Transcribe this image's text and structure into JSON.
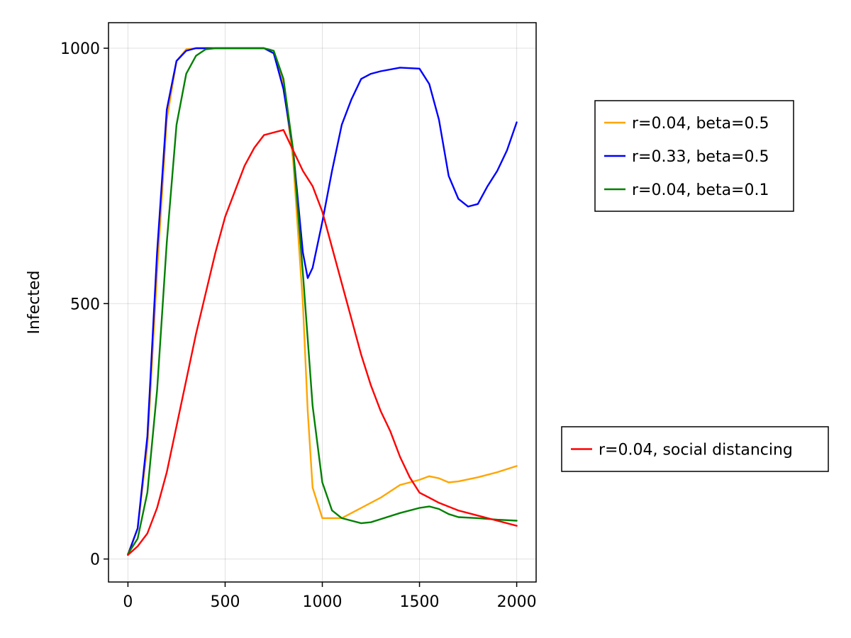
{
  "chart_data": {
    "type": "line",
    "title": "",
    "xlabel": "",
    "ylabel": "Infected",
    "xlim": [
      -100,
      2100
    ],
    "ylim": [
      -45,
      1050
    ],
    "xticks": [
      0,
      500,
      1000,
      1500,
      2000
    ],
    "yticks": [
      0,
      500,
      1000
    ],
    "xtick_labels": [
      "0",
      "500",
      "1000",
      "1500",
      "2000"
    ],
    "ytick_labels": [
      "0",
      "500",
      "1000"
    ],
    "grid": true,
    "legends": [
      {
        "placement": "right-top",
        "entries": [
          0,
          1,
          2
        ]
      },
      {
        "placement": "right-bottom",
        "entries": [
          3
        ]
      }
    ],
    "series": [
      {
        "name": "r=0.04, beta=0.5",
        "color": "#FFA500",
        "x": [
          0,
          50,
          100,
          150,
          200,
          250,
          300,
          350,
          400,
          500,
          600,
          700,
          750,
          800,
          850,
          900,
          925,
          950,
          1000,
          1100,
          1150,
          1200,
          1300,
          1400,
          1500,
          1550,
          1600,
          1650,
          1700,
          1800,
          1900,
          2000
        ],
        "y": [
          10,
          60,
          220,
          560,
          860,
          975,
          998,
          1000,
          1000,
          1000,
          1000,
          1000,
          990,
          930,
          780,
          500,
          290,
          140,
          80,
          80,
          90,
          100,
          120,
          145,
          155,
          162,
          158,
          150,
          152,
          160,
          170,
          182
        ]
      },
      {
        "name": "r=0.33, beta=0.5",
        "color": "#0000FF",
        "x": [
          0,
          50,
          100,
          150,
          200,
          250,
          300,
          350,
          400,
          500,
          600,
          700,
          750,
          800,
          850,
          900,
          925,
          950,
          1000,
          1050,
          1100,
          1150,
          1200,
          1250,
          1300,
          1400,
          1500,
          1550,
          1600,
          1650,
          1700,
          1750,
          1800,
          1850,
          1900,
          1950,
          2000
        ],
        "y": [
          8,
          60,
          240,
          600,
          880,
          975,
          995,
          1000,
          1000,
          1000,
          1000,
          1000,
          990,
          920,
          800,
          600,
          550,
          570,
          660,
          760,
          850,
          900,
          940,
          950,
          955,
          962,
          960,
          930,
          860,
          750,
          705,
          690,
          695,
          730,
          760,
          800,
          855
        ]
      },
      {
        "name": "r=0.04, beta=0.1",
        "color": "#008000",
        "x": [
          0,
          50,
          100,
          150,
          200,
          250,
          300,
          350,
          400,
          450,
          500,
          600,
          700,
          750,
          800,
          850,
          900,
          950,
          1000,
          1050,
          1100,
          1150,
          1200,
          1250,
          1300,
          1400,
          1500,
          1550,
          1600,
          1650,
          1700,
          1800,
          1900,
          2000
        ],
        "y": [
          10,
          40,
          130,
          330,
          620,
          850,
          950,
          985,
          998,
          1000,
          1000,
          1000,
          1000,
          995,
          940,
          800,
          560,
          300,
          150,
          95,
          80,
          75,
          70,
          72,
          78,
          90,
          100,
          103,
          98,
          88,
          82,
          80,
          77,
          75
        ]
      },
      {
        "name": "r=0.04, social distancing",
        "color": "#FF0000",
        "x": [
          0,
          50,
          100,
          150,
          200,
          250,
          300,
          350,
          400,
          450,
          500,
          550,
          600,
          650,
          700,
          750,
          800,
          850,
          900,
          950,
          1000,
          1050,
          1100,
          1150,
          1200,
          1250,
          1300,
          1350,
          1400,
          1450,
          1500,
          1550,
          1600,
          1700,
          1800,
          1900,
          2000
        ],
        "y": [
          8,
          25,
          50,
          100,
          170,
          260,
          350,
          440,
          520,
          600,
          670,
          720,
          770,
          805,
          830,
          835,
          840,
          800,
          760,
          730,
          680,
          610,
          540,
          470,
          400,
          340,
          290,
          250,
          200,
          160,
          130,
          120,
          110,
          95,
          85,
          75,
          65
        ]
      }
    ]
  }
}
